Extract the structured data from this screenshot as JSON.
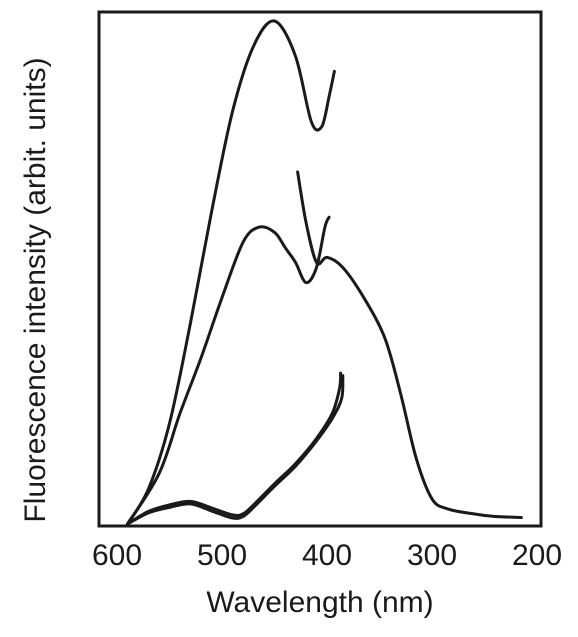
{
  "chart_data": {
    "type": "line",
    "xlabel": "Wavelength (nm)",
    "ylabel": "Fluorescence intensity (arbit. units)",
    "xlim": [
      600,
      200
    ],
    "ylim": [
      0,
      100
    ],
    "x_reversed": true,
    "x_ticks": [
      600,
      500,
      400,
      300,
      200
    ],
    "grid": false,
    "legend": "none",
    "series": [
      {
        "points": [
          [
            590,
            0
          ],
          [
            570,
            7
          ],
          [
            550,
            20
          ],
          [
            530,
            40
          ],
          [
            510,
            62
          ],
          [
            490,
            82
          ],
          [
            470,
            95
          ],
          [
            450,
            100
          ],
          [
            430,
            93
          ],
          [
            415,
            80
          ],
          [
            405,
            79
          ],
          [
            398,
            85
          ],
          [
            393,
            90
          ]
        ]
      },
      {
        "points": [
          [
            590,
            0
          ],
          [
            560,
            10
          ],
          [
            540,
            22
          ],
          [
            520,
            33
          ],
          [
            500,
            45
          ],
          [
            480,
            56
          ],
          [
            465,
            59
          ],
          [
            450,
            58
          ],
          [
            440,
            55
          ],
          [
            430,
            52
          ],
          [
            420,
            48
          ],
          [
            410,
            51
          ],
          [
            402,
            59
          ],
          [
            398,
            61
          ]
        ]
      },
      {
        "points": [
          [
            428,
            70
          ],
          [
            420,
            60
          ],
          [
            410,
            52
          ],
          [
            400,
            53
          ],
          [
            385,
            51
          ],
          [
            365,
            45
          ],
          [
            345,
            37
          ],
          [
            330,
            26
          ],
          [
            315,
            13
          ],
          [
            300,
            5
          ],
          [
            285,
            3
          ],
          [
            260,
            2
          ],
          [
            240,
            1.5
          ],
          [
            215,
            1.3
          ]
        ]
      },
      {
        "points": [
          [
            590,
            0
          ],
          [
            570,
            2.5
          ],
          [
            550,
            3.8
          ],
          [
            530,
            4.5
          ],
          [
            510,
            3.2
          ],
          [
            490,
            1.8
          ],
          [
            480,
            2
          ],
          [
            470,
            3.8
          ],
          [
            450,
            8
          ],
          [
            430,
            12
          ],
          [
            410,
            17
          ],
          [
            395,
            22
          ],
          [
            388,
            27
          ],
          [
            387,
            30
          ]
        ]
      },
      {
        "points": [
          [
            590,
            0
          ],
          [
            570,
            2.2
          ],
          [
            550,
            3.3
          ],
          [
            530,
            4
          ],
          [
            510,
            2.6
          ],
          [
            490,
            1.2
          ],
          [
            480,
            1.5
          ],
          [
            470,
            3.3
          ],
          [
            450,
            7.5
          ],
          [
            430,
            11.5
          ],
          [
            410,
            16.5
          ],
          [
            395,
            21
          ],
          [
            386,
            25
          ],
          [
            385,
            29.5
          ]
        ]
      }
    ]
  }
}
